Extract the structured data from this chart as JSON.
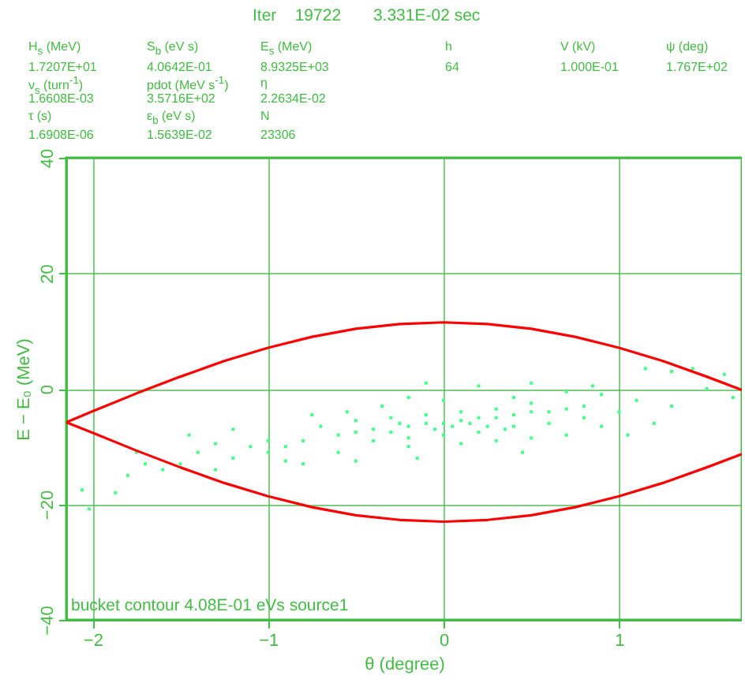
{
  "chart_data": {
    "type": "scatter",
    "title": "Iter    19722       3.331E-02 sec",
    "xlabel": "θ (degree)",
    "ylabel": "E − E₀ (MeV)",
    "annotations": [
      "H$_{s}$ (MeV)",
      "S$_{b}$ (eV s)",
      "E$_{s}$ (MeV)",
      "h",
      "V (kV)",
      "ψ (deg)",
      "1.7207E+01",
      "4.0642E-01",
      "8.9325E+03",
      "64",
      "1.000E-01",
      "1.767E+02",
      "ν$_{s}$ (turn$^{-1}$)",
      "pdot (MeV s$^{-1}$)",
      "η",
      "1.6608E-03",
      "3.5716E+02",
      "2.2634E-02",
      "τ (s)",
      "ε$_{b}$ (eV s)",
      "N",
      "1.6908E-06",
      "1.5639E-02",
      "23306",
      "bucket contour 4.08E-01 eVs source1"
    ],
    "xlim": [
      -2.15,
      1.7
    ],
    "xticks": [
      -2,
      -1,
      0,
      1
    ],
    "ylim": [
      -40,
      40
    ],
    "yticks": [
      -40,
      -20,
      0,
      20,
      40
    ],
    "grid": true,
    "series": [
      {
        "marker": "square",
        "color": "#44ff88",
        "x": [
          -0.6,
          -0.5,
          -0.4,
          -0.3,
          -0.2,
          -0.1,
          0,
          0.1,
          0.2,
          0.3,
          0.4,
          0.5,
          0.6,
          0.7,
          0.8,
          -0.5,
          -0.3,
          -0.1,
          0.1,
          0.3,
          0.5,
          -0.4,
          -0.2,
          0,
          0.2,
          0.4,
          0.6,
          0.8,
          -0.7,
          -0.8,
          -0.9,
          -1,
          -1,
          -1.1,
          -1.2,
          -0.9,
          -1.3,
          -1.4,
          -1.5,
          -1.6,
          -1.7,
          -1.8,
          -1.87,
          -2.06,
          -2.02,
          -1.3,
          -0.8,
          -0.6,
          -0.5,
          -0.2,
          0.1,
          0.3,
          0.5,
          0.7,
          0.9,
          1,
          1.1,
          0.9,
          0.7,
          0.4,
          0.2,
          -0.1,
          -0.2,
          0,
          0.5,
          0.85,
          1.15,
          1.3,
          1.42,
          1.6,
          1.5,
          1.3,
          1.2,
          1.05,
          -0.35,
          -0.55,
          -0.75,
          -1.2,
          -1.45,
          -1.75,
          -0.15,
          0.45,
          1.65,
          -0.05,
          0.05,
          0.15,
          0.25,
          -0.25,
          0.35
        ],
        "values": [
          -8,
          -7.5,
          -7,
          -7.5,
          -6.5,
          -6,
          -6,
          -5.5,
          -5,
          -5,
          -4.5,
          -4,
          -4,
          -3.5,
          -3,
          -5.5,
          -5,
          -4.5,
          -4,
          -3.5,
          -2.5,
          -9,
          -8.5,
          -8,
          -7.5,
          -6.5,
          -6,
          -5,
          -6.5,
          -9,
          -10,
          -9,
          -11,
          -10,
          -12,
          -12.5,
          -9.5,
          -11,
          -13,
          -14,
          -13,
          -15,
          -18,
          -17.5,
          -20.8,
          -14,
          -13,
          -11,
          -12.5,
          -10,
          -9.5,
          -9,
          -8.5,
          -8,
          -6.5,
          -4,
          -2,
          -1,
          -0.5,
          -1.5,
          0.5,
          1,
          -1.5,
          -2,
          1,
          0.5,
          3.5,
          3,
          3.5,
          2.5,
          0,
          -3,
          -6,
          -8,
          -3,
          -4,
          -4.5,
          -7,
          -8,
          -11,
          -12,
          -11,
          -1.5,
          -7,
          -6.5,
          -6,
          -6.5,
          -6,
          -7
        ]
      },
      {
        "type": "line",
        "color": "#ff0000",
        "x": [
          -2.15,
          -2,
          -1.75,
          -1.5,
          -1.25,
          -1,
          -0.75,
          -0.5,
          -0.25,
          0,
          0.25,
          0.5,
          0.75,
          1,
          1.25,
          1.5,
          1.7
        ],
        "values": [
          -5.8,
          -3.9,
          -0.8,
          2.1,
          4.8,
          7.1,
          9.0,
          10.4,
          11.2,
          11.5,
          11.2,
          10.4,
          9.0,
          7.1,
          4.8,
          2.1,
          -0.2
        ]
      },
      {
        "type": "line",
        "color": "#ff0000",
        "x": [
          -2.15,
          -2,
          -1.75,
          -1.5,
          -1.25,
          -1,
          -0.75,
          -0.5,
          -0.25,
          0,
          0.25,
          0.5,
          0.75,
          1,
          1.25,
          1.5,
          1.7
        ],
        "values": [
          -5.8,
          -7.6,
          -10.7,
          -13.6,
          -16.3,
          -18.6,
          -20.5,
          -21.9,
          -22.7,
          -23,
          -22.7,
          -21.9,
          -20.5,
          -18.6,
          -16.3,
          -13.6,
          -11.3
        ]
      }
    ]
  }
}
